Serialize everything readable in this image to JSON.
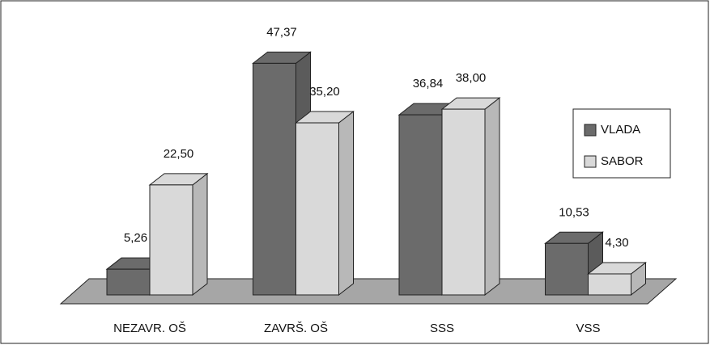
{
  "chart_data": {
    "type": "bar3d",
    "categories": [
      "NEZAVR. OŠ",
      "ZAVRŠ. OŠ",
      "SSS",
      "VSS"
    ],
    "series": [
      {
        "name": "VLADA",
        "color": "#6b6b6b",
        "values": [
          5.26,
          47.37,
          36.84,
          10.53
        ],
        "value_labels": [
          "5,26",
          "47,37",
          "36,84",
          "10,53"
        ]
      },
      {
        "name": "SABOR",
        "color": "#d9d9d9",
        "values": [
          22.5,
          35.2,
          38.0,
          4.3
        ],
        "value_labels": [
          "22,50",
          "35,20",
          "38,00",
          "4,30"
        ]
      }
    ],
    "legend": "right"
  }
}
